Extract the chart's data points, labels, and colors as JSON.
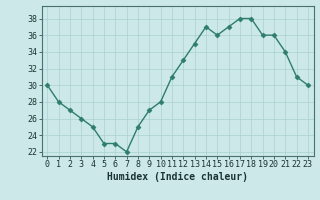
{
  "x": [
    0,
    1,
    2,
    3,
    4,
    5,
    6,
    7,
    8,
    9,
    10,
    11,
    12,
    13,
    14,
    15,
    16,
    17,
    18,
    19,
    20,
    21,
    22,
    23
  ],
  "y": [
    30,
    28,
    27,
    26,
    25,
    23,
    23,
    22,
    25,
    27,
    28,
    31,
    33,
    35,
    37,
    36,
    37,
    38,
    38,
    36,
    36,
    34,
    31,
    30
  ],
  "xlabel": "Humidex (Indice chaleur)",
  "ylim": [
    21.5,
    39.5
  ],
  "yticks": [
    22,
    24,
    26,
    28,
    30,
    32,
    34,
    36,
    38
  ],
  "xticks": [
    0,
    1,
    2,
    3,
    4,
    5,
    6,
    7,
    8,
    9,
    10,
    11,
    12,
    13,
    14,
    15,
    16,
    17,
    18,
    19,
    20,
    21,
    22,
    23
  ],
  "line_color": "#2e7d6e",
  "marker_color": "#2e7d6e",
  "bg_color": "#cce8e8",
  "grid_color": "#aad0d0",
  "tick_label_color": "#1a3333",
  "xlabel_color": "#1a3333",
  "xlabel_fontsize": 7,
  "tick_fontsize": 6,
  "linewidth": 1.0,
  "markersize": 2.5
}
